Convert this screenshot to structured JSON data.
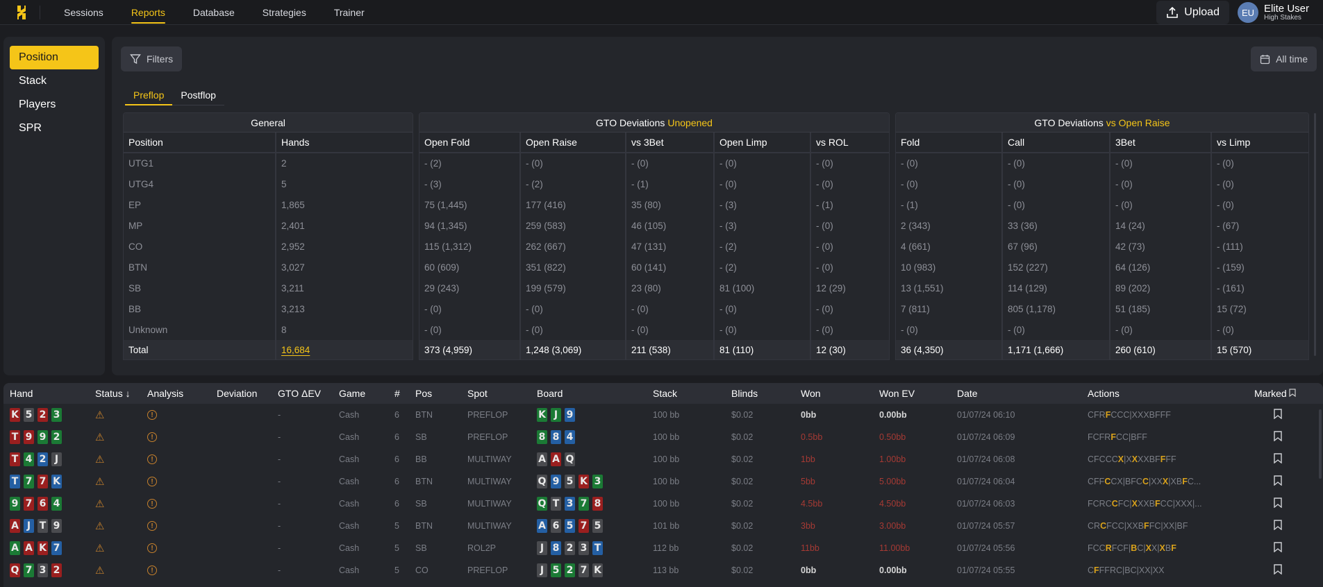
{
  "topnav": {
    "items": [
      {
        "label": "Sessions",
        "active": false
      },
      {
        "label": "Reports",
        "active": true
      },
      {
        "label": "Database",
        "active": false
      },
      {
        "label": "Strategies",
        "active": false
      },
      {
        "label": "Trainer",
        "active": false
      }
    ],
    "upload_label": "Upload",
    "user": {
      "initials": "EU",
      "name": "Elite User",
      "subtitle": "High Stakes"
    }
  },
  "sidebar": {
    "items": [
      {
        "label": "Position",
        "active": true
      },
      {
        "label": "Stack",
        "active": false
      },
      {
        "label": "Players",
        "active": false
      },
      {
        "label": "SPR",
        "active": false
      }
    ]
  },
  "toolbar": {
    "filters_label": "Filters",
    "date_range_label": "All time"
  },
  "subtabs": [
    {
      "label": "Preflop",
      "active": true
    },
    {
      "label": "Postflop",
      "active": false
    }
  ],
  "report": {
    "general": {
      "title": "General",
      "columns": [
        "Position",
        "Hands"
      ],
      "rows": [
        [
          "UTG1",
          "2"
        ],
        [
          "UTG4",
          "5"
        ],
        [
          "EP",
          "1,865"
        ],
        [
          "MP",
          "2,401"
        ],
        [
          "CO",
          "2,952"
        ],
        [
          "BTN",
          "3,027"
        ],
        [
          "SB",
          "3,211"
        ],
        [
          "BB",
          "3,213"
        ],
        [
          "Unknown",
          "8"
        ]
      ],
      "total": [
        "Total",
        "16,684"
      ]
    },
    "unopened": {
      "title": "GTO Deviations",
      "title_highlight": "Unopened",
      "columns": [
        "Open Fold",
        "Open Raise",
        "vs 3Bet",
        "Open Limp",
        "vs ROL"
      ],
      "rows": [
        [
          "- (2)",
          "- (0)",
          "- (0)",
          "- (0)",
          "- (0)"
        ],
        [
          "- (3)",
          "- (2)",
          "- (1)",
          "- (0)",
          "- (0)"
        ],
        [
          "75 (1,445)",
          "177 (416)",
          "35 (80)",
          "- (3)",
          "- (1)"
        ],
        [
          "94 (1,345)",
          "259 (583)",
          "46 (105)",
          "- (3)",
          "- (0)"
        ],
        [
          "115 (1,312)",
          "262 (667)",
          "47 (131)",
          "- (2)",
          "- (0)"
        ],
        [
          "60 (609)",
          "351 (822)",
          "60 (141)",
          "- (2)",
          "- (0)"
        ],
        [
          "29 (243)",
          "199 (579)",
          "23 (80)",
          "81 (100)",
          "12 (29)"
        ],
        [
          "- (0)",
          "- (0)",
          "- (0)",
          "- (0)",
          "- (0)"
        ],
        [
          "- (0)",
          "- (0)",
          "- (0)",
          "- (0)",
          "- (0)"
        ]
      ],
      "total": [
        "373 (4,959)",
        "1,248 (3,069)",
        "211 (538)",
        "81 (110)",
        "12 (30)"
      ]
    },
    "vs_open_raise": {
      "title": "GTO Deviations",
      "title_highlight": "vs Open Raise",
      "columns": [
        "Fold",
        "Call",
        "3Bet",
        "vs Limp"
      ],
      "rows": [
        [
          "- (0)",
          "- (0)",
          "- (0)",
          "- (0)"
        ],
        [
          "- (0)",
          "- (0)",
          "- (0)",
          "- (0)"
        ],
        [
          "- (1)",
          "- (0)",
          "- (0)",
          "- (0)"
        ],
        [
          "2 (343)",
          "33 (36)",
          "14 (24)",
          "- (67)"
        ],
        [
          "4 (661)",
          "67 (96)",
          "42 (73)",
          "- (111)"
        ],
        [
          "10 (983)",
          "152 (227)",
          "64 (126)",
          "- (159)"
        ],
        [
          "13 (1,551)",
          "114 (129)",
          "89 (202)",
          "- (161)"
        ],
        [
          "7 (811)",
          "805 (1,178)",
          "51 (185)",
          "15 (72)"
        ],
        [
          "- (0)",
          "- (0)",
          "- (0)",
          "- (0)"
        ]
      ],
      "total": [
        "36 (4,350)",
        "1,171 (1,666)",
        "260 (610)",
        "15 (570)"
      ]
    }
  },
  "hands": {
    "columns": [
      "Hand",
      "Status ↓",
      "Analysis",
      "Deviation",
      "GTO ΔEV",
      "Game",
      "#",
      "Pos",
      "Spot",
      "Board",
      "Stack",
      "Blinds",
      "Won",
      "Won EV",
      "Date",
      "Actions",
      "Marked"
    ],
    "colors": {
      "r": "#9a1f1f",
      "g": "#1b7a35",
      "b": "#245fa3",
      "k": "#4a4b4f",
      "accent": "#f5c518",
      "loss": "#a63a34"
    },
    "rows": [
      {
        "hand": [
          [
            "K",
            "r"
          ],
          [
            "5",
            "k"
          ],
          [
            "2",
            "r"
          ],
          [
            "3",
            "g"
          ]
        ],
        "deviation": "",
        "gto_dev": "-",
        "game": "Cash",
        "num": "6",
        "pos": "BTN",
        "spot": "PREFLOP",
        "board": [
          [
            "K",
            "g"
          ],
          [
            "J",
            "g"
          ],
          [
            "9",
            "b"
          ]
        ],
        "stack": "100 bb",
        "blinds": "$0.02",
        "won": "0bb",
        "won_ev": "0.00bb",
        "won_type": "neutral",
        "date": "01/07/24 06:10",
        "actions": [
          [
            "CFR",
            0
          ],
          [
            "F",
            1
          ],
          [
            "CCC|XXXBFFF",
            0
          ]
        ]
      },
      {
        "hand": [
          [
            "T",
            "r"
          ],
          [
            "9",
            "r"
          ],
          [
            "9",
            "g"
          ],
          [
            "2",
            "g"
          ]
        ],
        "deviation": "",
        "gto_dev": "-",
        "game": "Cash",
        "num": "6",
        "pos": "SB",
        "spot": "PREFLOP",
        "board": [
          [
            "8",
            "g"
          ],
          [
            "8",
            "b"
          ],
          [
            "4",
            "b"
          ]
        ],
        "stack": "100 bb",
        "blinds": "$0.02",
        "won": "0.5bb",
        "won_ev": "0.50bb",
        "won_type": "neg",
        "date": "01/07/24 06:09",
        "actions": [
          [
            "FCFR",
            0
          ],
          [
            "F",
            1
          ],
          [
            "CC|BFF",
            0
          ]
        ]
      },
      {
        "hand": [
          [
            "T",
            "r"
          ],
          [
            "4",
            "g"
          ],
          [
            "2",
            "b"
          ],
          [
            "J",
            "k"
          ]
        ],
        "deviation": "",
        "gto_dev": "-",
        "game": "Cash",
        "num": "6",
        "pos": "BB",
        "spot": "MULTIWAY",
        "board": [
          [
            "A",
            "k"
          ],
          [
            "A",
            "r"
          ],
          [
            "Q",
            "k"
          ]
        ],
        "stack": "100 bb",
        "blinds": "$0.02",
        "won": "1bb",
        "won_ev": "1.00bb",
        "won_type": "neg",
        "date": "01/07/24 06:08",
        "actions": [
          [
            "CFCCC",
            0
          ],
          [
            "X",
            1
          ],
          [
            "|X",
            0
          ],
          [
            "X",
            1
          ],
          [
            "XXBF",
            0
          ],
          [
            "F",
            1
          ],
          [
            "FF",
            0
          ]
        ]
      },
      {
        "hand": [
          [
            "T",
            "b"
          ],
          [
            "7",
            "g"
          ],
          [
            "7",
            "r"
          ],
          [
            "K",
            "b"
          ]
        ],
        "deviation": "",
        "gto_dev": "-",
        "game": "Cash",
        "num": "6",
        "pos": "BTN",
        "spot": "MULTIWAY",
        "board": [
          [
            "Q",
            "k"
          ],
          [
            "9",
            "b"
          ],
          [
            "5",
            "k"
          ],
          [
            "K",
            "r"
          ],
          [
            "3",
            "g"
          ]
        ],
        "stack": "100 bb",
        "blinds": "$0.02",
        "won": "5bb",
        "won_ev": "5.00bb",
        "won_type": "neg",
        "date": "01/07/24 06:04",
        "actions": [
          [
            "CFF",
            0
          ],
          [
            "C",
            1
          ],
          [
            "CX|BFC",
            0
          ],
          [
            "C",
            1
          ],
          [
            "|XX",
            0
          ],
          [
            "X",
            1
          ],
          [
            "|XB",
            0
          ],
          [
            "F",
            1
          ],
          [
            "C...",
            0
          ]
        ]
      },
      {
        "hand": [
          [
            "9",
            "g"
          ],
          [
            "7",
            "r"
          ],
          [
            "6",
            "r"
          ],
          [
            "4",
            "g"
          ]
        ],
        "deviation": "",
        "gto_dev": "-",
        "game": "Cash",
        "num": "6",
        "pos": "SB",
        "spot": "MULTIWAY",
        "board": [
          [
            "Q",
            "g"
          ],
          [
            "T",
            "k"
          ],
          [
            "3",
            "b"
          ],
          [
            "7",
            "g"
          ],
          [
            "8",
            "r"
          ]
        ],
        "stack": "100 bb",
        "blinds": "$0.02",
        "won": "4.5bb",
        "won_ev": "4.50bb",
        "won_type": "neg",
        "date": "01/07/24 06:03",
        "actions": [
          [
            "FCRC",
            0
          ],
          [
            "C",
            1
          ],
          [
            "FC|",
            0
          ],
          [
            "X",
            1
          ],
          [
            "XXB",
            0
          ],
          [
            "F",
            1
          ],
          [
            "CC|XXX|...",
            0
          ]
        ]
      },
      {
        "hand": [
          [
            "A",
            "r"
          ],
          [
            "J",
            "b"
          ],
          [
            "T",
            "k"
          ],
          [
            "9",
            "k"
          ]
        ],
        "deviation": "",
        "gto_dev": "-",
        "game": "Cash",
        "num": "5",
        "pos": "BTN",
        "spot": "MULTIWAY",
        "board": [
          [
            "A",
            "b"
          ],
          [
            "6",
            "k"
          ],
          [
            "5",
            "b"
          ],
          [
            "7",
            "r"
          ],
          [
            "5",
            "k"
          ]
        ],
        "stack": "101 bb",
        "blinds": "$0.02",
        "won": "3bb",
        "won_ev": "3.00bb",
        "won_type": "neg",
        "date": "01/07/24 05:57",
        "actions": [
          [
            "CR",
            0
          ],
          [
            "C",
            1
          ],
          [
            "FCC|XXB",
            0
          ],
          [
            "F",
            1
          ],
          [
            "FC|XX|BF",
            0
          ]
        ]
      },
      {
        "hand": [
          [
            "A",
            "g"
          ],
          [
            "A",
            "r"
          ],
          [
            "K",
            "r"
          ],
          [
            "7",
            "b"
          ]
        ],
        "deviation": "",
        "gto_dev": "-",
        "game": "Cash",
        "num": "5",
        "pos": "SB",
        "spot": "ROL2P",
        "board": [
          [
            "J",
            "k"
          ],
          [
            "8",
            "b"
          ],
          [
            "2",
            "k"
          ],
          [
            "3",
            "k"
          ],
          [
            "T",
            "b"
          ]
        ],
        "stack": "112 bb",
        "blinds": "$0.02",
        "won": "11bb",
        "won_ev": "11.00bb",
        "won_type": "neg",
        "date": "01/07/24 05:56",
        "actions": [
          [
            "FCC",
            0
          ],
          [
            "R",
            1
          ],
          [
            "FCF|",
            0
          ],
          [
            "B",
            1
          ],
          [
            "C|",
            0
          ],
          [
            "X",
            1
          ],
          [
            "X|",
            0
          ],
          [
            "X",
            1
          ],
          [
            "B",
            0
          ],
          [
            "F",
            1
          ]
        ]
      },
      {
        "hand": [
          [
            "Q",
            "r"
          ],
          [
            "7",
            "g"
          ],
          [
            "3",
            "k"
          ],
          [
            "2",
            "r"
          ]
        ],
        "deviation": "",
        "gto_dev": "-",
        "game": "Cash",
        "num": "5",
        "pos": "CO",
        "spot": "PREFLOP",
        "board": [
          [
            "J",
            "k"
          ],
          [
            "5",
            "g"
          ],
          [
            "2",
            "g"
          ],
          [
            "7",
            "k"
          ],
          [
            "K",
            "k"
          ]
        ],
        "stack": "113 bb",
        "blinds": "$0.02",
        "won": "0bb",
        "won_ev": "0.00bb",
        "won_type": "neutral",
        "date": "01/07/24 05:55",
        "actions": [
          [
            "C",
            0
          ],
          [
            "F",
            1
          ],
          [
            "FFRC|BC|XX|XX",
            0
          ]
        ]
      }
    ]
  }
}
